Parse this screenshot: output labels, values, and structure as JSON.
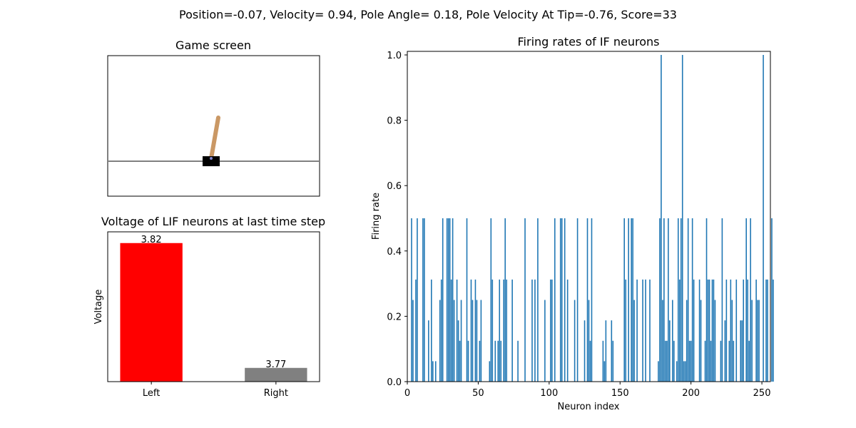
{
  "suptitle": "Position=-0.07, Velocity= 0.94, Pole Angle= 0.18, Pole Velocity At Tip=-0.76, Score=33",
  "game_screen": {
    "title": "Game screen",
    "colors": {
      "track": "#808080",
      "cart": "#000000",
      "pole": "#ca9865",
      "axle": "#8184cb"
    }
  },
  "chart_data": [
    {
      "type": "bar",
      "title": "Voltage of LIF neurons at last time step",
      "xlabel": "",
      "ylabel": "Voltage",
      "categories": [
        "Left",
        "Right"
      ],
      "values": [
        3.82,
        3.77
      ],
      "data_labels": [
        "3.82",
        "3.77"
      ],
      "colors": [
        "#ff0000",
        "#808080"
      ],
      "ylim": [
        3.7645,
        3.8245
      ]
    },
    {
      "type": "bar",
      "title": "Firing rates of IF neurons",
      "xlabel": "Neuron index",
      "ylabel": "Firing rate",
      "xlim": [
        0,
        256
      ],
      "ylim": [
        0,
        1.0
      ],
      "xticks": [
        "0",
        "50",
        "100",
        "150",
        "200",
        "250"
      ],
      "yticks": [
        "0.0",
        "0.2",
        "0.4",
        "0.6",
        "0.8",
        "1.0"
      ],
      "color": "#1f77b4",
      "values": [
        0,
        0,
        0,
        0.5,
        0.25,
        0,
        0.3125,
        0.5,
        0,
        0,
        0,
        0.5,
        0.5,
        0,
        0,
        0.1875,
        0,
        0.3125,
        0.0625,
        0,
        0.0625,
        0,
        0,
        0.25,
        0.3125,
        0.5,
        0,
        0,
        0.5,
        0.5,
        0.5,
        0.3125,
        0.5,
        0.25,
        0,
        0.3125,
        0.1875,
        0.125,
        0.25,
        0,
        0,
        0,
        0.5,
        0.125,
        0,
        0.3125,
        0.25,
        0,
        0.3125,
        0.25,
        0,
        0.125,
        0.25,
        0,
        0,
        0,
        0,
        0,
        0.0625,
        0.5,
        0.3125,
        0,
        0.125,
        0,
        0.125,
        0.3125,
        0.125,
        0,
        0.3125,
        0.5,
        0.3125,
        0,
        0,
        0,
        0.3125,
        0,
        0,
        0,
        0.125,
        0,
        0,
        0,
        0,
        0.5,
        0,
        0,
        0,
        0,
        0.3125,
        0,
        0.3125,
        0,
        0.5,
        0,
        0,
        0,
        0,
        0.25,
        0,
        0,
        0,
        0.3125,
        0.3125,
        0,
        0.5,
        0,
        0,
        0,
        0.5,
        0.5,
        0,
        0.5,
        0,
        0.3125,
        0,
        0,
        0,
        0,
        0.25,
        0,
        0.5,
        0,
        0,
        0,
        0,
        0.1875,
        0,
        0.5,
        0.25,
        0.125,
        0.5,
        0,
        0,
        0,
        0,
        0,
        0,
        0,
        0.125,
        0.0625,
        0.1875,
        0,
        0,
        0,
        0.1875,
        0.125,
        0,
        0,
        0,
        0,
        0,
        0,
        0,
        0.5,
        0.3125,
        0,
        0.5,
        0,
        0.5,
        0.5,
        0.25,
        0,
        0.3125,
        0,
        0,
        0,
        0.3125,
        0,
        0.3125,
        0,
        0,
        0.3125,
        0,
        0,
        0,
        0,
        0,
        0.0625,
        0.5,
        1.0,
        0.25,
        0.5,
        0.125,
        0.125,
        0.5,
        0.1875,
        0,
        0.25,
        0.125,
        0,
        0.0625,
        0.5,
        0.3125,
        0.5,
        1.0,
        0.0625,
        0.0625,
        0.25,
        0.5,
        0.125,
        0.125,
        0.5,
        0.3125,
        0,
        0,
        0,
        0.3125,
        0.25,
        0,
        0,
        0.125,
        0.5,
        0.3125,
        0.3125,
        0.125,
        0.3125,
        0.3125,
        0.25,
        0,
        0,
        0,
        0.125,
        0.5,
        0,
        0.1875,
        0.3125,
        0,
        0.125,
        0.3125,
        0.25,
        0.125,
        0,
        0.3125,
        0,
        0,
        0.1875,
        0.1875,
        0.3125,
        0,
        0.5,
        0.3125,
        0.125,
        0.5,
        0.25,
        0,
        0,
        0.3125,
        0.25,
        0.25,
        0,
        0,
        1.0,
        0,
        0.3125,
        0.3125,
        0,
        0,
        0.5,
        0.3125,
        0
      ]
    }
  ]
}
